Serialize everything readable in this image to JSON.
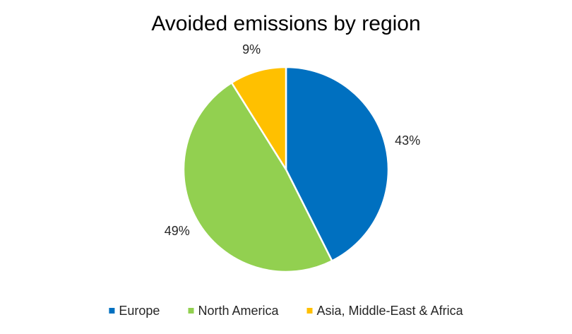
{
  "chart_data": {
    "type": "pie",
    "title": "Avoided emissions by region",
    "slices": [
      {
        "label": "Europe",
        "value": 43,
        "display": "43%",
        "color": "#0070C0"
      },
      {
        "label": "North America",
        "value": 49,
        "display": "49%",
        "color": "#92D050"
      },
      {
        "label": "Asia, Middle-East & Africa",
        "value": 9,
        "display": "9%",
        "color": "#FFC000"
      }
    ],
    "unit": "%",
    "start": "12 o'clock",
    "direction": "clockwise",
    "legend_position": "bottom"
  }
}
